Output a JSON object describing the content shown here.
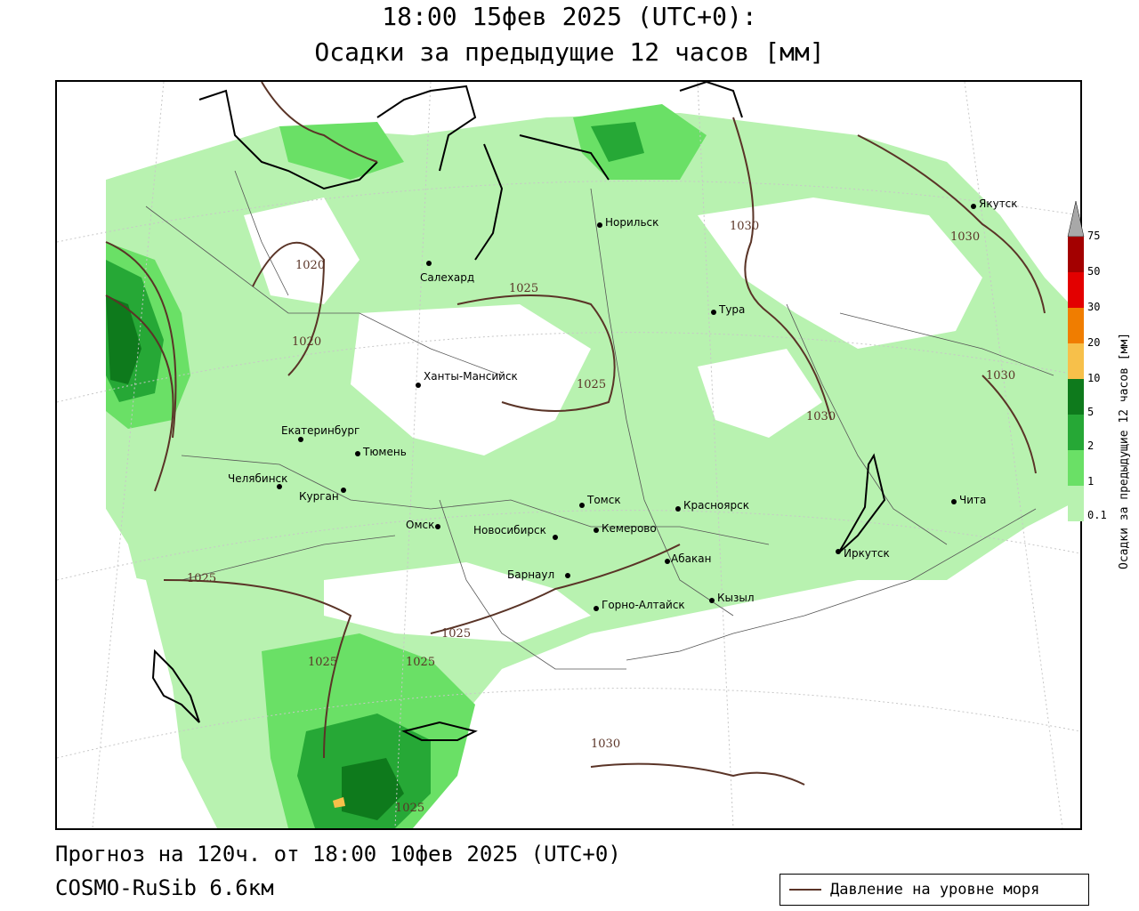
{
  "title": {
    "line1": "18:00 15фев 2025 (UTC+0):",
    "line2": "Осадки за предыдущие 12 часов [мм]"
  },
  "legend": {
    "title": "Осадки за предыдущие 12 часов [мм]",
    "ticks": [
      "75",
      "50",
      "30",
      "20",
      "10",
      "5",
      "2",
      "1",
      "0.1"
    ],
    "colors": [
      "#a8a8a8",
      "#a30000",
      "#e30000",
      "#f07d00",
      "#f7c04a",
      "#0e7a1c",
      "#26a836",
      "#6ae066",
      "#b8f2b0"
    ]
  },
  "footer": {
    "forecast": "Прогноз на 120ч. от 18:00 10фев 2025 (UTC+0)",
    "model": "COSMO-RuSib 6.6км"
  },
  "pressure_legend": {
    "label": "Давление на уровне моря"
  },
  "cities": [
    "Якутск",
    "Норильск",
    "Салехард",
    "Тура",
    "Ханты-Мансийск",
    "Екатеринбург",
    "Тюмень",
    "Челябинск",
    "Курган",
    "Омск",
    "Новосибирск",
    "Томск",
    "Кемерово",
    "Красноярск",
    "Барнаул",
    "Абакан",
    "Горно-Алтайск",
    "Кызыл",
    "Иркутск",
    "Чита"
  ],
  "isobars": [
    "1020",
    "1020",
    "1025",
    "1025",
    "1025",
    "1025",
    "1025",
    "1025",
    "1025",
    "1030",
    "1030",
    "1030",
    "1030",
    "1030"
  ],
  "colors": {
    "precip_light": "#b8f2b0",
    "precip_1": "#6ae066",
    "precip_2": "#26a836",
    "precip_5": "#0e7a1c",
    "isobar": "#5a3427"
  }
}
